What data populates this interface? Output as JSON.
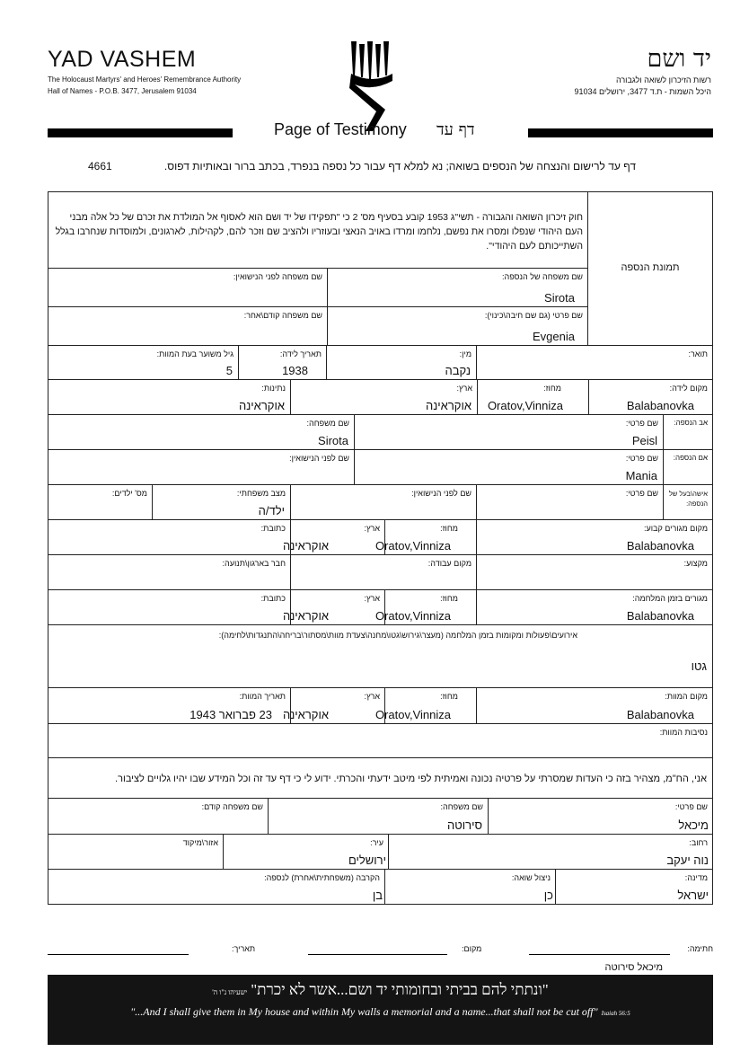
{
  "header": {
    "org_en": "YAD VASHEM",
    "org_en_sub1": "The Holocaust Martyrs' and Heroes' Remembrance Authority",
    "org_en_sub2": "Hall of Names - P.O.B. 3477, Jerusalem 91034",
    "org_he": "יד ושם",
    "org_he_sub1": "רשות הזיכרון לשואה ולגבורה",
    "org_he_sub2": "היכל השמות - ת.ד 3477, ירושלים 91034",
    "title_en": "Page of Testimony",
    "title_he": "דף עד",
    "instructions": "דף עד לרישום והנצחה של הנספים בשואה; נא למלא דף עבור כל נספה בנפרד, בכתב ברור ובאותיות דפוס.",
    "form_number": "4661"
  },
  "intro": {
    "law_text": "חוק זיכרון השואה והגבורה - תשי\"ג 1953 קובע בסעיף מס' 2 כי \"תפקידו של יד ושם הוא לאסוף אל המולדת את זכרם של כל אלה מבני העם היהודי שנפלו ומסרו את נפשם, נלחמו ומרדו באויב הנאצי ובעוזריו ולהציב שם וזכר להם, לקהילות, לארגונים, ולמוסדות שנחרבו בגלל השתייכותם לעם היהודי\".",
    "photo_label": "תמונת הנספה"
  },
  "victim": {
    "last_name": {
      "label": "שם משפחה של הנספה:",
      "value": "Sirota"
    },
    "maiden_name": {
      "label": "שם משפחה לפני הנישואין:",
      "value": ""
    },
    "first_name": {
      "label": "שם פרטי (גם שם חיבה\\כינוי):",
      "value": "Evgenia"
    },
    "prev_name": {
      "label": "שם משפחה קודם\\אחר:",
      "value": ""
    },
    "title": {
      "label": "תואר:",
      "value": ""
    },
    "gender": {
      "label": "מין:",
      "value": "נקבה"
    },
    "birth_date": {
      "label": "תאריך לידה:",
      "value": "1938"
    },
    "age_at_death": {
      "label": "גיל משוער בעת המוות:",
      "value": "5"
    },
    "birth_place": {
      "label": "מקום לידה:",
      "value": "Balabanovka"
    },
    "birth_district": {
      "label": "מחוז:",
      "value": "Oratov,Vinniza"
    },
    "birth_country": {
      "label": "ארץ:",
      "value": "אוקראינה"
    },
    "nationality": {
      "label": "נתינות:",
      "value": "אוקראינה"
    }
  },
  "father": {
    "group_label": "אב הנספה:",
    "first_name": {
      "label": "שם פרטי:",
      "value": "Peisl"
    },
    "last_name": {
      "label": "שם משפחה:",
      "value": "Sirota"
    }
  },
  "mother": {
    "group_label": "אם הנספה:",
    "first_name": {
      "label": "שם פרטי:",
      "value": "Mania"
    },
    "maiden_name": {
      "label": "שם לפני הנישואין:",
      "value": ""
    }
  },
  "spouse": {
    "group_label": "אישה\\בעל של הנספה:",
    "first_name": {
      "label": "שם פרטי:",
      "value": ""
    },
    "maiden_name": {
      "label": "שם לפני הנישואין:",
      "value": ""
    },
    "marital_status": {
      "label": "מצב משפחתי:",
      "value": "ילד/ה"
    },
    "children": {
      "label": "מס' ילדים:",
      "value": ""
    }
  },
  "residence": {
    "place": {
      "label": "מקום מגורים קבוע:",
      "value": "Balabanovka"
    },
    "district": {
      "label": "מחוז:",
      "value": "Oratov,Vinniza"
    },
    "country": {
      "label": "ארץ:",
      "value": "אוקראינה"
    },
    "address": {
      "label": "כתובת:",
      "value": ""
    }
  },
  "work": {
    "profession": {
      "label": "מקצוע:",
      "value": ""
    },
    "workplace": {
      "label": "מקום עבודה:",
      "value": ""
    },
    "organization": {
      "label": "חבר בארגון\\תנועה:",
      "value": ""
    }
  },
  "wartime": {
    "place": {
      "label": "מגורים בזמן המלחמה:",
      "value": "Balabanovka"
    },
    "district": {
      "label": "מחוז:",
      "value": "Oratov,Vinniza"
    },
    "country": {
      "label": "ארץ:",
      "value": "אוקראינה"
    },
    "address": {
      "label": "כתובת:",
      "value": ""
    }
  },
  "events": {
    "label": "אירועים\\פעולות ומקומות בזמן המלחמה (מעצר\\גירוש\\גטו\\מחנה\\צעדת מוות\\מסתור\\בריחה\\התנגדות\\לחימה):",
    "value": "גטו"
  },
  "death": {
    "place": {
      "label": "מקום המוות:",
      "value": "Balabanovka"
    },
    "district": {
      "label": "מחוז:",
      "value": "Oratov,Vinniza"
    },
    "country": {
      "label": "ארץ:",
      "value": "אוקראינה"
    },
    "date": {
      "label": "תאריך המוות:",
      "value": "23 פברואר 1943"
    },
    "circumstances": {
      "label": "נסיבות המוות:",
      "value": ""
    }
  },
  "declaration": "אני, הח\"מ, מצהיר בזה כי העדות שמסרתי על פרטיה נכונה ואמיתית לפי מיטב ידעתי והכרתי. ידוע לי כי דף עד זה וכל המידע שבו יהיו גלויים לציבור.",
  "submitter": {
    "first_name": {
      "label": "שם פרטי:",
      "value": "מיכאל"
    },
    "last_name": {
      "label": "שם משפחה:",
      "value": "סירוטה"
    },
    "prev_name": {
      "label": "שם משפחה קודם:",
      "value": ""
    },
    "street": {
      "label": "רחוב:",
      "value": "נוה יעקב"
    },
    "city": {
      "label": "עיר:",
      "value": "ירושלים"
    },
    "zip": {
      "label": "אזור\\מיקוד",
      "value": ""
    },
    "country": {
      "label": "מדינה:",
      "value": "ישראל"
    },
    "survivor": {
      "label": "ניצול שואה:",
      "value": "כן"
    },
    "relation": {
      "label": "הקרבה (משפחתית\\אחרת) לנספה:",
      "value": "בן"
    }
  },
  "signature": {
    "sign_label": "חתימה:",
    "place_label": "מקום:",
    "date_label": "תאריך:",
    "signer_name": "מיכאל סירוטה"
  },
  "banner": {
    "quote_he": "\"ונתתי להם בביתי ובחומותי יד ושם...אשר לא יכרת\"",
    "source_he": "ישעיהו נ\"ו ה'",
    "quote_en": "\"...And I shall give them in My house and within My walls a memorial and a name...that shall not be cut off\"",
    "source_en": "Isaiah 56:5"
  }
}
